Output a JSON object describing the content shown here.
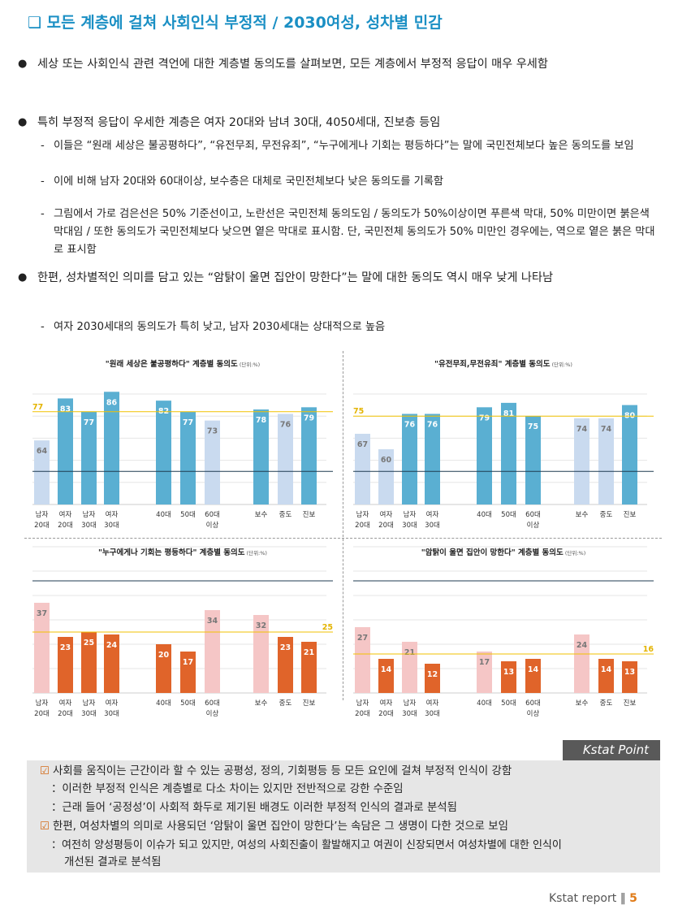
{
  "title": "❑ 모든 계층에 걸쳐 사회인식 부정적 / 2030여성, 성차별 민감",
  "paragraphs": {
    "p1": "세상 또는 사회인식 관련 격언에 대한 계층별 동의도를 살펴보면, 모든 계층에서 부정적 응답이 매우 우세함",
    "p2": "특히 부정적 응답이 우세한 계층은 여자 20대와 남녀 30대, 4050세대, 진보층 등임",
    "s1": "이들은 “원래 세상은 불공평하다”, “유전무죄, 무전유죄”, “누구에게나 기회는 평등하다”는 말에 국민전체보다 높은 동의도를 보임",
    "s2": "이에 비해 남자 20대와 60대이상, 보수층은 대체로 국민전체보다 낮은 동의도를 기록함",
    "s3": "그림에서 가로 검은선은 50% 기준선이고, 노란선은 국민전체 동의도임 / 동의도가 50%이상이면 푸른색 막대, 50% 미만이면 붉은색 막대임 / 또한 동의도가 국민전체보다 낮으면 옅은 막대로 표시함. 단, 국민전체 동의도가 50% 미만인 경우에는, 역으로 옅은 붉은 막대로 표시함",
    "p3": "한편, 성차별적인 의미를 담고 있는 “암탉이 울면 집안이 망한다”는 말에 대한 동의도 역시 매우 낮게 나타남",
    "s4": "여자 2030세대의 동의도가 특히 낮고, 남자 2030세대는 상대적으로 높음"
  },
  "chart_data": [
    {
      "type": "bar",
      "title": "\"원래 세상은 불공평하다\" 계층별 동의도",
      "unit": "(단위:%)",
      "categories": [
        "남자 20대",
        "여자 20대",
        "남자 30대",
        "여자 30대",
        "40대",
        "50대",
        "60대 이상",
        "보수",
        "중도",
        "진보"
      ],
      "values": [
        64,
        83,
        77,
        86,
        82,
        77,
        73,
        78,
        76,
        79
      ],
      "reference_line": 77,
      "baseline": 50,
      "colors": [
        "#c9daef",
        "#5aafd2",
        "#5aafd2",
        "#5aafd2",
        "#5aafd2",
        "#5aafd2",
        "#c9daef",
        "#5aafd2",
        "#c9daef",
        "#5aafd2"
      ]
    },
    {
      "type": "bar",
      "title": "\"유전무죄,무전유죄\" 계층별 동의도",
      "unit": "(단위:%)",
      "categories": [
        "남자 20대",
        "여자 20대",
        "남자 30대",
        "여자 30대",
        "40대",
        "50대",
        "60대 이상",
        "보수",
        "중도",
        "진보"
      ],
      "values": [
        67,
        60,
        76,
        76,
        79,
        81,
        75,
        74,
        74,
        80
      ],
      "reference_line": 75,
      "baseline": 50,
      "colors": [
        "#c9daef",
        "#c9daef",
        "#5aafd2",
        "#5aafd2",
        "#5aafd2",
        "#5aafd2",
        "#5aafd2",
        "#c9daef",
        "#c9daef",
        "#5aafd2"
      ]
    },
    {
      "type": "bar",
      "title": "\"누구에게나 기회는 평등하다\" 계층별 동의도",
      "unit": "(단위:%)",
      "categories": [
        "남자 20대",
        "여자 20대",
        "남자 30대",
        "여자 30대",
        "40대",
        "50대",
        "60대 이상",
        "보수",
        "중도",
        "진보"
      ],
      "values": [
        37,
        23,
        25,
        24,
        20,
        17,
        34,
        32,
        23,
        21
      ],
      "reference_line": 25,
      "baseline": 50,
      "colors": [
        "#f5c6c6",
        "#e0642a",
        "#e0642a",
        "#e0642a",
        "#e0642a",
        "#e0642a",
        "#f5c6c6",
        "#f5c6c6",
        "#e0642a",
        "#e0642a"
      ]
    },
    {
      "type": "bar",
      "title": "\"암탉이 울면 집안이 망한다\" 계층별 동의도",
      "unit": "(단위:%)",
      "categories": [
        "남자 20대",
        "여자 20대",
        "남자 30대",
        "여자 30대",
        "40대",
        "50대",
        "60대 이상",
        "보수",
        "중도",
        "진보"
      ],
      "values": [
        27,
        14,
        21,
        12,
        17,
        13,
        14,
        24,
        14,
        13
      ],
      "reference_line": 16,
      "baseline": 50,
      "colors": [
        "#f5c6c6",
        "#e0642a",
        "#f5c6c6",
        "#e0642a",
        "#f5c6c6",
        "#e0642a",
        "#e0642a",
        "#f5c6c6",
        "#e0642a",
        "#e0642a"
      ]
    }
  ],
  "kstat": {
    "tag": "Kstat Point",
    "l1": "사회를 움직이는 근간이라 할 수 있는 공평성, 정의, 기회평등 등 모든 요인에 걸쳐 부정적 인식이 강함",
    "l2": "：이러한 부정적 인식은 계층별로 다소 차이는 있지만 전반적으로 강한 수준임",
    "l3": "：근래 들어 ‘공정성’이 사회적 화두로 제기된 배경도 이러한 부정적 인식의 결과로 분석됨",
    "l4": "한편, 여성차별의 의미로 사용되던 ‘암탉이 울면 집안이 망한다’는 속담은 그 생명이 다한 것으로 보임",
    "l5": "：여전히 양성평등이 이슈가 되고 있지만, 여성의 사회진출이 활발해지고 여권이 신장되면서 여성차별에 대한 인식이",
    "l6": "개선된 결과로 분석됨"
  },
  "footer": {
    "text": "Kstat report ‖",
    "page": "5"
  }
}
